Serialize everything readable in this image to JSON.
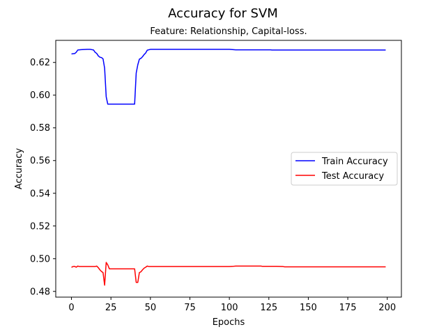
{
  "chart_data": {
    "type": "line",
    "title": "Accuracy for SVM",
    "subtitle": "Feature: Relationship, Capital-loss.",
    "xlabel": "Epochs",
    "ylabel": "Accuracy",
    "xlim": [
      -9.95,
      208.95
    ],
    "ylim": [
      0.4765,
      0.6335
    ],
    "xticks": [
      0,
      25,
      50,
      75,
      100,
      125,
      150,
      175,
      200
    ],
    "yticks": [
      0.48,
      0.5,
      0.52,
      0.54,
      0.56,
      0.58,
      0.6,
      0.62
    ],
    "ytick_labels": [
      "0.48",
      "0.50",
      "0.52",
      "0.54",
      "0.56",
      "0.58",
      "0.60",
      "0.62"
    ],
    "grid": false,
    "legend_position": "center-right",
    "series": [
      {
        "name": "Train Accuracy",
        "color": "#0000ff",
        "points": [
          [
            0,
            0.6252
          ],
          [
            2,
            0.6254
          ],
          [
            3,
            0.6262
          ],
          [
            4,
            0.6276
          ],
          [
            6,
            0.6278
          ],
          [
            8,
            0.6279
          ],
          [
            10,
            0.628
          ],
          [
            12,
            0.628
          ],
          [
            14,
            0.6276
          ],
          [
            15,
            0.6262
          ],
          [
            16,
            0.6255
          ],
          [
            17,
            0.624
          ],
          [
            18,
            0.6232
          ],
          [
            19,
            0.623
          ],
          [
            20,
            0.6222
          ],
          [
            21,
            0.6165
          ],
          [
            22,
            0.599
          ],
          [
            23,
            0.5945
          ],
          [
            25,
            0.5945
          ],
          [
            30,
            0.5945
          ],
          [
            35,
            0.5945
          ],
          [
            40,
            0.5945
          ],
          [
            41,
            0.6135
          ],
          [
            42,
            0.6185
          ],
          [
            43,
            0.622
          ],
          [
            44,
            0.6225
          ],
          [
            45,
            0.6235
          ],
          [
            46,
            0.6248
          ],
          [
            47,
            0.6258
          ],
          [
            48,
            0.6275
          ],
          [
            50,
            0.628
          ],
          [
            55,
            0.628
          ],
          [
            60,
            0.628
          ],
          [
            70,
            0.628
          ],
          [
            80,
            0.628
          ],
          [
            90,
            0.628
          ],
          [
            100,
            0.628
          ],
          [
            104,
            0.6277
          ],
          [
            110,
            0.6277
          ],
          [
            120,
            0.6277
          ],
          [
            126,
            0.6277
          ],
          [
            127,
            0.6276
          ],
          [
            140,
            0.6276
          ],
          [
            160,
            0.6276
          ],
          [
            180,
            0.6276
          ],
          [
            199,
            0.6276
          ]
        ]
      },
      {
        "name": "Test Accuracy",
        "color": "#ff0000",
        "points": [
          [
            0,
            0.4947
          ],
          [
            1,
            0.4952
          ],
          [
            2,
            0.4953
          ],
          [
            3,
            0.4948
          ],
          [
            4,
            0.4955
          ],
          [
            5,
            0.4952
          ],
          [
            8,
            0.4952
          ],
          [
            12,
            0.4952
          ],
          [
            15,
            0.4952
          ],
          [
            16,
            0.4955
          ],
          [
            17,
            0.4945
          ],
          [
            18,
            0.4932
          ],
          [
            19,
            0.4922
          ],
          [
            20,
            0.4915
          ],
          [
            21,
            0.4838
          ],
          [
            22,
            0.4977
          ],
          [
            23,
            0.4962
          ],
          [
            24,
            0.4938
          ],
          [
            26,
            0.4938
          ],
          [
            30,
            0.4938
          ],
          [
            35,
            0.4938
          ],
          [
            40,
            0.4938
          ],
          [
            41,
            0.4855
          ],
          [
            42,
            0.4855
          ],
          [
            43,
            0.4915
          ],
          [
            44,
            0.492
          ],
          [
            45,
            0.4932
          ],
          [
            46,
            0.4942
          ],
          [
            47,
            0.4948
          ],
          [
            48,
            0.4955
          ],
          [
            49,
            0.4952
          ],
          [
            50,
            0.4952
          ],
          [
            60,
            0.4952
          ],
          [
            80,
            0.4952
          ],
          [
            100,
            0.4952
          ],
          [
            102,
            0.4953
          ],
          [
            104,
            0.4955
          ],
          [
            110,
            0.4955
          ],
          [
            120,
            0.4955
          ],
          [
            121,
            0.4953
          ],
          [
            130,
            0.4953
          ],
          [
            134,
            0.4952
          ],
          [
            135,
            0.495
          ],
          [
            150,
            0.495
          ],
          [
            170,
            0.495
          ],
          [
            199,
            0.495
          ]
        ]
      }
    ]
  }
}
